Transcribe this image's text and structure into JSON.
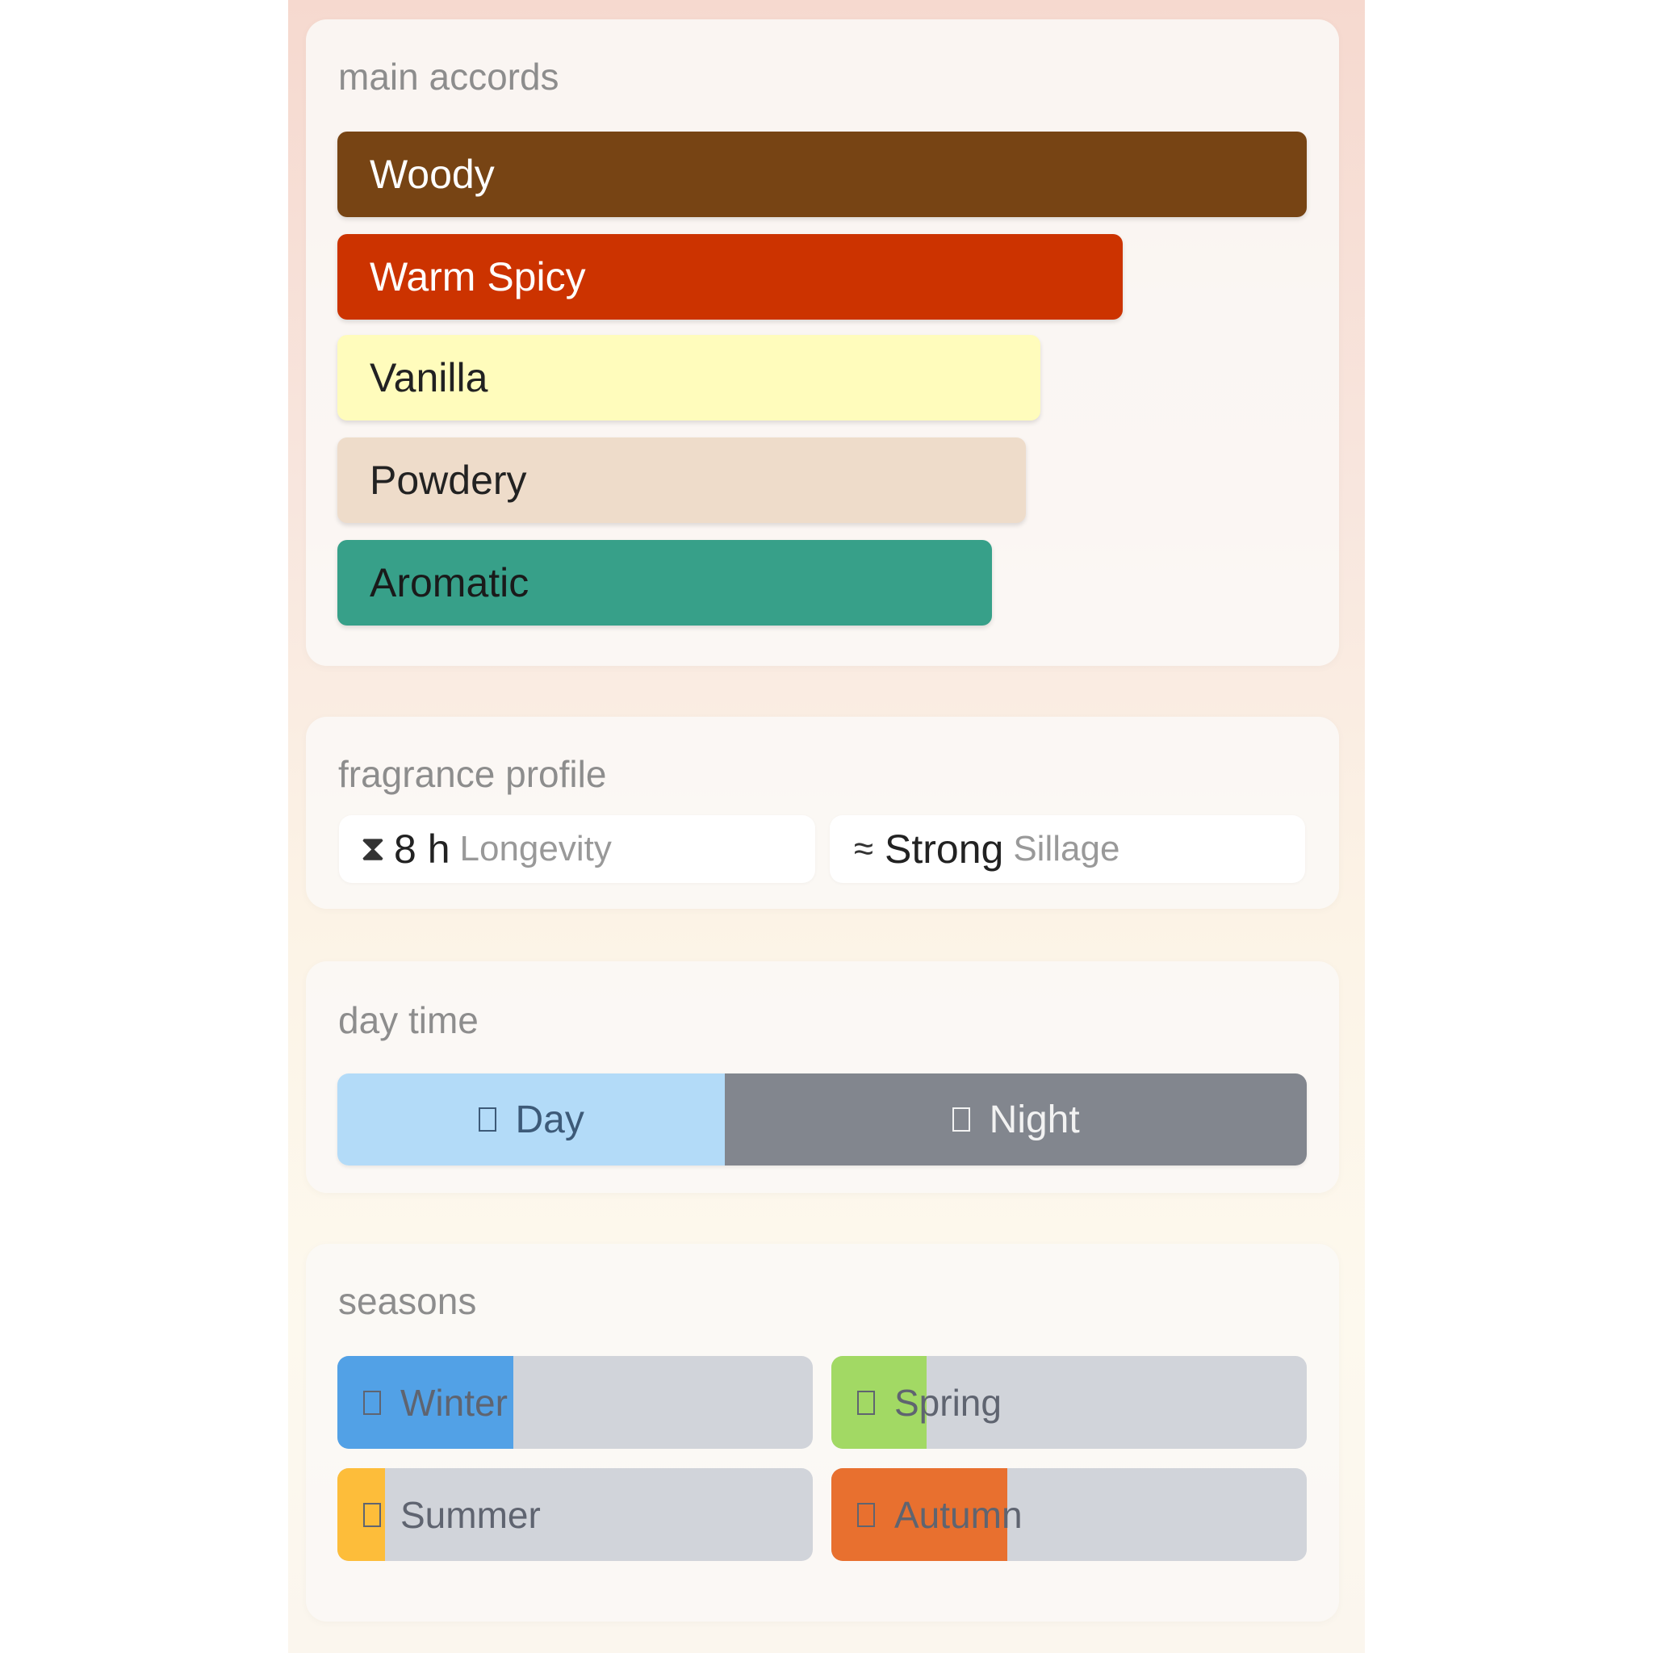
{
  "main_accords": {
    "title": "main accords",
    "items": [
      {
        "label": "Woody",
        "percent": 100,
        "color": "#774414",
        "text_color": "#ffffff"
      },
      {
        "label": "Warm Spicy",
        "percent": 81,
        "color": "#cc3300",
        "text_color": "#ffffff"
      },
      {
        "label": "Vanilla",
        "percent": 72.5,
        "color": "#fffcbc",
        "text_color": "#222222"
      },
      {
        "label": "Powdery",
        "percent": 71,
        "color": "#eedcca",
        "text_color": "#222222"
      },
      {
        "label": "Aromatic",
        "percent": 67.5,
        "color": "#37a089",
        "text_color": "#1a1a1a"
      }
    ]
  },
  "fragrance_profile": {
    "title": "fragrance profile",
    "longevity": {
      "icon": "hourglass-icon",
      "value": "8 h",
      "label": "Longevity"
    },
    "sillage": {
      "icon": "waves-icon",
      "value": "Strong",
      "label": "Sillage"
    }
  },
  "day_time": {
    "title": "day time",
    "day": {
      "label": "Day",
      "percent": 40,
      "color": "#b3dbf8"
    },
    "night": {
      "label": "Night",
      "percent": 60,
      "color": "#82868e"
    }
  },
  "seasons": {
    "title": "seasons",
    "items": [
      {
        "label": "Winter",
        "percent": 37,
        "color": "#52a1e6"
      },
      {
        "label": "Spring",
        "percent": 20,
        "color": "#a2d964"
      },
      {
        "label": "Summer",
        "percent": 10,
        "color": "#fdbd3a"
      },
      {
        "label": "Autumn",
        "percent": 37,
        "color": "#e8702f"
      }
    ]
  }
}
